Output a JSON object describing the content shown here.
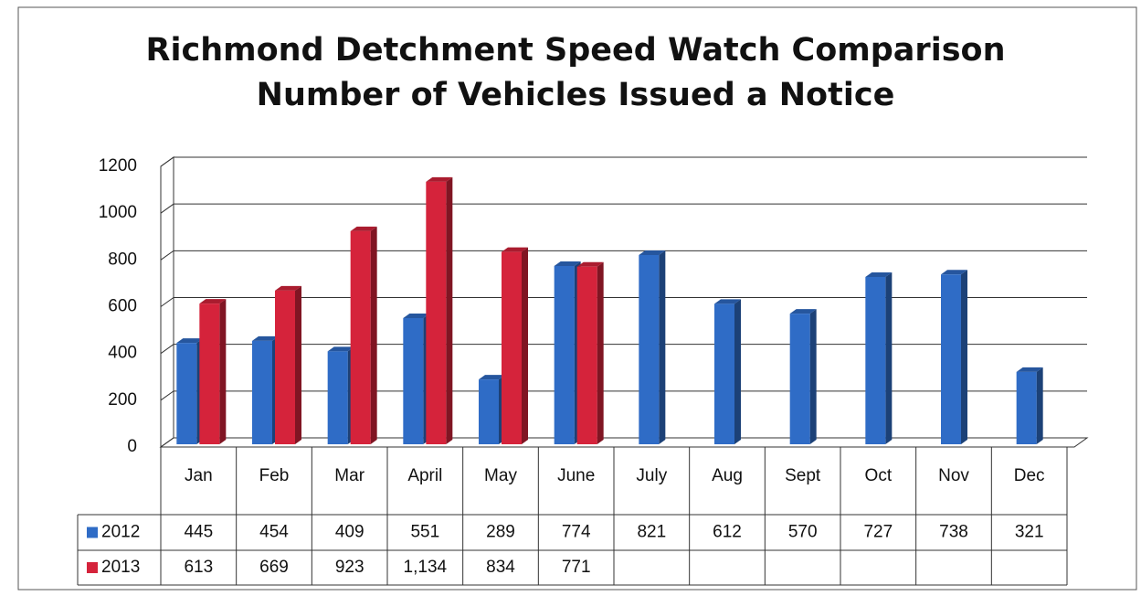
{
  "chart_data": {
    "type": "bar",
    "title": "Richmond Detchment Speed Watch Comparison",
    "subtitle": "Number of Vehicles Issued a Notice",
    "categories": [
      "Jan",
      "Feb",
      "Mar",
      "April",
      "May",
      "June",
      "July",
      "Aug",
      "Sept",
      "Oct",
      "Nov",
      "Dec"
    ],
    "series": [
      {
        "name": "2012",
        "color": "#2f6cc6",
        "values": [
          445,
          454,
          409,
          551,
          289,
          774,
          821,
          612,
          570,
          727,
          738,
          321
        ]
      },
      {
        "name": "2013",
        "color": "#d5233b",
        "values": [
          613,
          669,
          923,
          1134,
          834,
          771,
          null,
          null,
          null,
          null,
          null,
          null
        ],
        "value_labels": [
          "613",
          "669",
          "923",
          "1,134",
          "834",
          "771",
          null,
          null,
          null,
          null,
          null,
          null
        ]
      }
    ],
    "ylim": [
      0,
      1200
    ],
    "yticks": [
      0,
      200,
      400,
      600,
      800,
      1000,
      1200
    ],
    "grid": true
  }
}
